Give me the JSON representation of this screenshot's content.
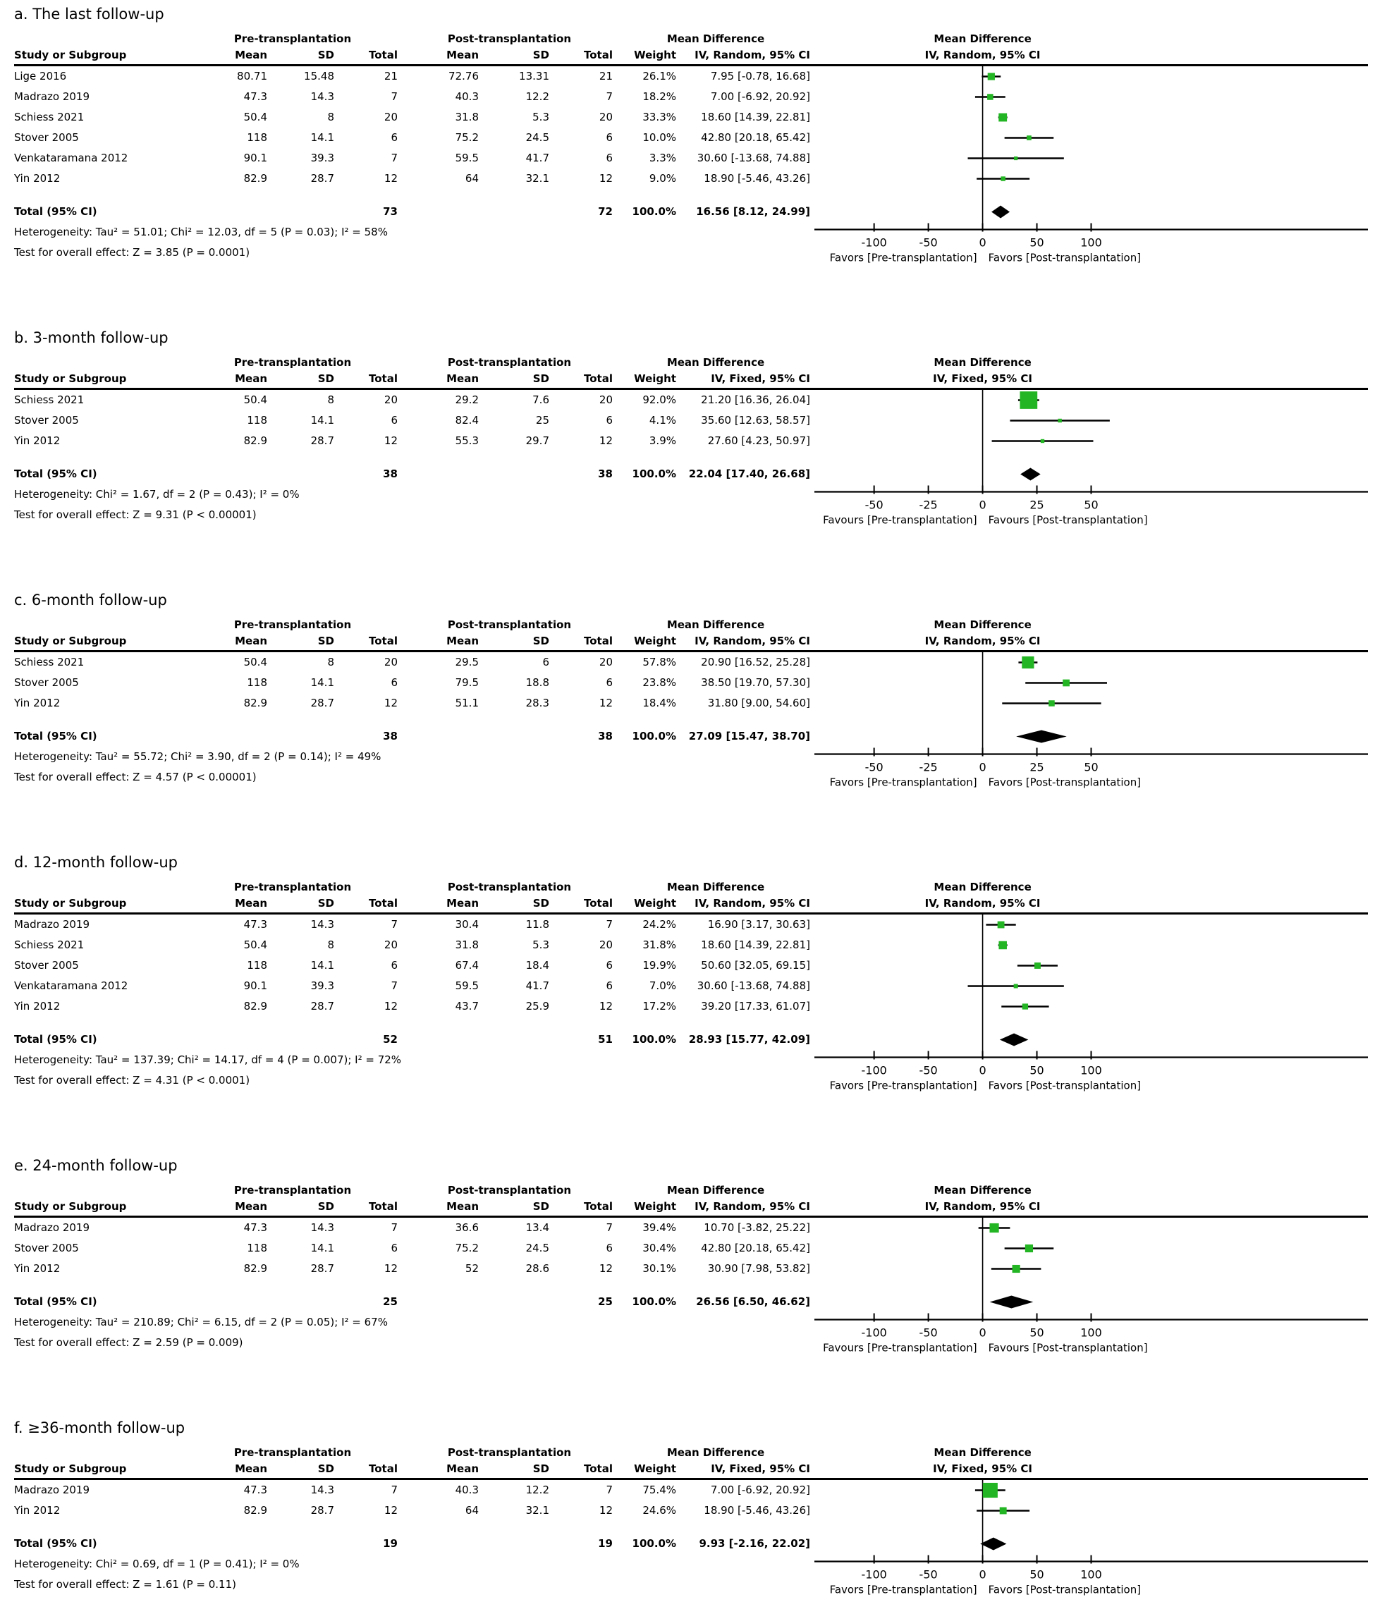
{
  "colors": {
    "marker": "#23b523",
    "diamond": "#000000",
    "line": "#000000",
    "text": "#000000"
  },
  "table_headers": {
    "study_col": "Study or Subgroup",
    "pre_group": "Pre-transplantation",
    "post_group": "Post-transplantation",
    "md_group": "Mean Difference",
    "sub_cols": [
      "Mean",
      "SD",
      "Total",
      "Mean",
      "SD",
      "Total",
      "Weight"
    ]
  },
  "chart_data": [
    {
      "type": "forest_plot",
      "panel_label": "a",
      "title": "a. The last follow-up",
      "effect_header": "IV, Random, 95% CI",
      "studies": [
        {
          "study": "Lige 2016",
          "pre": [
            "80.71",
            "15.48",
            "21"
          ],
          "post": [
            "72.76",
            "13.31",
            "21"
          ],
          "weight": "26.1%",
          "w": 26.1,
          "ci": "7.95 [-0.78, 16.68]",
          "md": 7.95,
          "lo": -0.78,
          "hi": 16.68
        },
        {
          "study": "Madrazo 2019",
          "pre": [
            "47.3",
            "14.3",
            "7"
          ],
          "post": [
            "40.3",
            "12.2",
            "7"
          ],
          "weight": "18.2%",
          "w": 18.2,
          "ci": "7.00 [-6.92, 20.92]",
          "md": 7.0,
          "lo": -6.92,
          "hi": 20.92
        },
        {
          "study": "Schiess 2021",
          "pre": [
            "50.4",
            "8",
            "20"
          ],
          "post": [
            "31.8",
            "5.3",
            "20"
          ],
          "weight": "33.3%",
          "w": 33.3,
          "ci": "18.60 [14.39, 22.81]",
          "md": 18.6,
          "lo": 14.39,
          "hi": 22.81
        },
        {
          "study": "Stover 2005",
          "pre": [
            "118",
            "14.1",
            "6"
          ],
          "post": [
            "75.2",
            "24.5",
            "6"
          ],
          "weight": "10.0%",
          "w": 10.0,
          "ci": "42.80 [20.18, 65.42]",
          "md": 42.8,
          "lo": 20.18,
          "hi": 65.42
        },
        {
          "study": "Venkataramana 2012",
          "pre": [
            "90.1",
            "39.3",
            "7"
          ],
          "post": [
            "59.5",
            "41.7",
            "6"
          ],
          "weight": "3.3%",
          "w": 3.3,
          "ci": "30.60 [-13.68, 74.88]",
          "md": 30.6,
          "lo": -13.68,
          "hi": 74.88
        },
        {
          "study": "Yin 2012",
          "pre": [
            "82.9",
            "28.7",
            "12"
          ],
          "post": [
            "64",
            "32.1",
            "12"
          ],
          "weight": "9.0%",
          "w": 9.0,
          "ci": "18.90 [-5.46, 43.26]",
          "md": 18.9,
          "lo": -5.46,
          "hi": 43.26
        }
      ],
      "total": {
        "label": "Total (95% CI)",
        "pre_total": "73",
        "post_total": "72",
        "weight": "100.0%",
        "ci": "16.56 [8.12, 24.99]",
        "md": 16.56,
        "lo": 8.12,
        "hi": 24.99
      },
      "heterogeneity": "Heterogeneity: Tau² = 51.01; Chi² = 12.03, df = 5 (P = 0.03); I² = 58%",
      "overall_effect": "Test for overall effect: Z = 3.85 (P = 0.0001)",
      "axis": {
        "ticks": [
          -100,
          -50,
          0,
          50,
          100
        ],
        "favors_left": "Favors [Pre-transplantation]",
        "favors_right": "Favors [Post-transplantation]"
      }
    },
    {
      "type": "forest_plot",
      "panel_label": "b",
      "title": "b. 3-month follow-up",
      "effect_header": "IV, Fixed, 95% CI",
      "studies": [
        {
          "study": "Schiess 2021",
          "pre": [
            "50.4",
            "8",
            "20"
          ],
          "post": [
            "29.2",
            "7.6",
            "20"
          ],
          "weight": "92.0%",
          "w": 92.0,
          "ci": "21.20 [16.36, 26.04]",
          "md": 21.2,
          "lo": 16.36,
          "hi": 26.04
        },
        {
          "study": "Stover 2005",
          "pre": [
            "118",
            "14.1",
            "6"
          ],
          "post": [
            "82.4",
            "25",
            "6"
          ],
          "weight": "4.1%",
          "w": 4.1,
          "ci": "35.60 [12.63, 58.57]",
          "md": 35.6,
          "lo": 12.63,
          "hi": 58.57
        },
        {
          "study": "Yin 2012",
          "pre": [
            "82.9",
            "28.7",
            "12"
          ],
          "post": [
            "55.3",
            "29.7",
            "12"
          ],
          "weight": "3.9%",
          "w": 3.9,
          "ci": "27.60 [4.23, 50.97]",
          "md": 27.6,
          "lo": 4.23,
          "hi": 50.97
        }
      ],
      "total": {
        "label": "Total (95% CI)",
        "pre_total": "38",
        "post_total": "38",
        "weight": "100.0%",
        "ci": "22.04 [17.40, 26.68]",
        "md": 22.04,
        "lo": 17.4,
        "hi": 26.68
      },
      "heterogeneity": "Heterogeneity: Chi² = 1.67, df = 2 (P = 0.43); I² = 0%",
      "overall_effect": "Test for overall effect: Z = 9.31 (P < 0.00001)",
      "axis": {
        "ticks": [
          -50,
          -25,
          0,
          25,
          50
        ],
        "favors_left": "Favours [Pre-transplantation]",
        "favors_right": "Favours [Post-transplantation]"
      }
    },
    {
      "type": "forest_plot",
      "panel_label": "c",
      "title": "c. 6-month follow-up",
      "effect_header": "IV, Random, 95% CI",
      "studies": [
        {
          "study": "Schiess 2021",
          "pre": [
            "50.4",
            "8",
            "20"
          ],
          "post": [
            "29.5",
            "6",
            "20"
          ],
          "weight": "57.8%",
          "w": 57.8,
          "ci": "20.90 [16.52, 25.28]",
          "md": 20.9,
          "lo": 16.52,
          "hi": 25.28
        },
        {
          "study": "Stover 2005",
          "pre": [
            "118",
            "14.1",
            "6"
          ],
          "post": [
            "79.5",
            "18.8",
            "6"
          ],
          "weight": "23.8%",
          "w": 23.8,
          "ci": "38.50 [19.70, 57.30]",
          "md": 38.5,
          "lo": 19.7,
          "hi": 57.3
        },
        {
          "study": "Yin 2012",
          "pre": [
            "82.9",
            "28.7",
            "12"
          ],
          "post": [
            "51.1",
            "28.3",
            "12"
          ],
          "weight": "18.4%",
          "w": 18.4,
          "ci": "31.80 [9.00, 54.60]",
          "md": 31.8,
          "lo": 9.0,
          "hi": 54.6
        }
      ],
      "total": {
        "label": "Total (95% CI)",
        "pre_total": "38",
        "post_total": "38",
        "weight": "100.0%",
        "ci": "27.09 [15.47, 38.70]",
        "md": 27.09,
        "lo": 15.47,
        "hi": 38.7
      },
      "heterogeneity": "Heterogeneity: Tau² = 55.72; Chi² = 3.90, df = 2 (P = 0.14); I² = 49%",
      "overall_effect": "Test for overall effect: Z = 4.57 (P < 0.00001)",
      "axis": {
        "ticks": [
          -50,
          -25,
          0,
          25,
          50
        ],
        "favors_left": "Favors [Pre-transplantation]",
        "favors_right": "Favors [Post-transplantation]"
      }
    },
    {
      "type": "forest_plot",
      "panel_label": "d",
      "title": "d. 12-month follow-up",
      "effect_header": "IV, Random, 95% CI",
      "studies": [
        {
          "study": "Madrazo 2019",
          "pre": [
            "47.3",
            "14.3",
            "7"
          ],
          "post": [
            "30.4",
            "11.8",
            "7"
          ],
          "weight": "24.2%",
          "w": 24.2,
          "ci": "16.90 [3.17, 30.63]",
          "md": 16.9,
          "lo": 3.17,
          "hi": 30.63
        },
        {
          "study": "Schiess 2021",
          "pre": [
            "50.4",
            "8",
            "20"
          ],
          "post": [
            "31.8",
            "5.3",
            "20"
          ],
          "weight": "31.8%",
          "w": 31.8,
          "ci": "18.60 [14.39, 22.81]",
          "md": 18.6,
          "lo": 14.39,
          "hi": 22.81
        },
        {
          "study": "Stover 2005",
          "pre": [
            "118",
            "14.1",
            "6"
          ],
          "post": [
            "67.4",
            "18.4",
            "6"
          ],
          "weight": "19.9%",
          "w": 19.9,
          "ci": "50.60 [32.05, 69.15]",
          "md": 50.6,
          "lo": 32.05,
          "hi": 69.15
        },
        {
          "study": "Venkataramana 2012",
          "pre": [
            "90.1",
            "39.3",
            "7"
          ],
          "post": [
            "59.5",
            "41.7",
            "6"
          ],
          "weight": "7.0%",
          "w": 7.0,
          "ci": "30.60 [-13.68, 74.88]",
          "md": 30.6,
          "lo": -13.68,
          "hi": 74.88
        },
        {
          "study": "Yin 2012",
          "pre": [
            "82.9",
            "28.7",
            "12"
          ],
          "post": [
            "43.7",
            "25.9",
            "12"
          ],
          "weight": "17.2%",
          "w": 17.2,
          "ci": "39.20 [17.33, 61.07]",
          "md": 39.2,
          "lo": 17.33,
          "hi": 61.07
        }
      ],
      "total": {
        "label": "Total (95% CI)",
        "pre_total": "52",
        "post_total": "51",
        "weight": "100.0%",
        "ci": "28.93 [15.77, 42.09]",
        "md": 28.93,
        "lo": 15.77,
        "hi": 42.09
      },
      "heterogeneity": "Heterogeneity: Tau² = 137.39; Chi² = 14.17, df = 4 (P = 0.007); I² = 72%",
      "overall_effect": "Test for overall effect: Z = 4.31 (P < 0.0001)",
      "axis": {
        "ticks": [
          -100,
          -50,
          0,
          50,
          100
        ],
        "favors_left": "Favors [Pre-transplantation]",
        "favors_right": "Favors [Post-transplantation]"
      }
    },
    {
      "type": "forest_plot",
      "panel_label": "e",
      "title": "e. 24-month follow-up",
      "effect_header": "IV, Random, 95% CI",
      "studies": [
        {
          "study": "Madrazo 2019",
          "pre": [
            "47.3",
            "14.3",
            "7"
          ],
          "post": [
            "36.6",
            "13.4",
            "7"
          ],
          "weight": "39.4%",
          "w": 39.4,
          "ci": "10.70 [-3.82, 25.22]",
          "md": 10.7,
          "lo": -3.82,
          "hi": 25.22
        },
        {
          "study": "Stover 2005",
          "pre": [
            "118",
            "14.1",
            "6"
          ],
          "post": [
            "75.2",
            "24.5",
            "6"
          ],
          "weight": "30.4%",
          "w": 30.4,
          "ci": "42.80 [20.18, 65.42]",
          "md": 42.8,
          "lo": 20.18,
          "hi": 65.42
        },
        {
          "study": "Yin 2012",
          "pre": [
            "82.9",
            "28.7",
            "12"
          ],
          "post": [
            "52",
            "28.6",
            "12"
          ],
          "weight": "30.1%",
          "w": 30.1,
          "ci": "30.90 [7.98, 53.82]",
          "md": 30.9,
          "lo": 7.98,
          "hi": 53.82
        }
      ],
      "total": {
        "label": "Total (95% CI)",
        "pre_total": "25",
        "post_total": "25",
        "weight": "100.0%",
        "ci": "26.56 [6.50, 46.62]",
        "md": 26.56,
        "lo": 6.5,
        "hi": 46.62
      },
      "heterogeneity": "Heterogeneity: Tau² = 210.89; Chi² = 6.15, df = 2 (P = 0.05); I² = 67%",
      "overall_effect": "Test for overall effect: Z = 2.59 (P = 0.009)",
      "axis": {
        "ticks": [
          -100,
          -50,
          0,
          50,
          100
        ],
        "favors_left": "Favours [Pre-transplantation]",
        "favors_right": "Favours [Post-transplantation]"
      }
    },
    {
      "type": "forest_plot",
      "panel_label": "f",
      "title": "f. ≥36-month follow-up",
      "effect_header": "IV, Fixed, 95% CI",
      "studies": [
        {
          "study": "Madrazo 2019",
          "pre": [
            "47.3",
            "14.3",
            "7"
          ],
          "post": [
            "40.3",
            "12.2",
            "7"
          ],
          "weight": "75.4%",
          "w": 75.4,
          "ci": "7.00 [-6.92, 20.92]",
          "md": 7.0,
          "lo": -6.92,
          "hi": 20.92
        },
        {
          "study": "Yin 2012",
          "pre": [
            "82.9",
            "28.7",
            "12"
          ],
          "post": [
            "64",
            "32.1",
            "12"
          ],
          "weight": "24.6%",
          "w": 24.6,
          "ci": "18.90 [-5.46, 43.26]",
          "md": 18.9,
          "lo": -5.46,
          "hi": 43.26
        }
      ],
      "total": {
        "label": "Total (95% CI)",
        "pre_total": "19",
        "post_total": "19",
        "weight": "100.0%",
        "ci": "9.93 [-2.16, 22.02]",
        "md": 9.93,
        "lo": -2.16,
        "hi": 22.02
      },
      "heterogeneity": "Heterogeneity: Chi² = 0.69, df = 1 (P = 0.41); I² = 0%",
      "overall_effect": "Test for overall effect: Z = 1.61 (P = 0.11)",
      "axis": {
        "ticks": [
          -100,
          -50,
          0,
          50,
          100
        ],
        "favors_left": "Favors [Pre-transplantation]",
        "favors_right": "Favors [Post-transplantation]"
      }
    }
  ]
}
